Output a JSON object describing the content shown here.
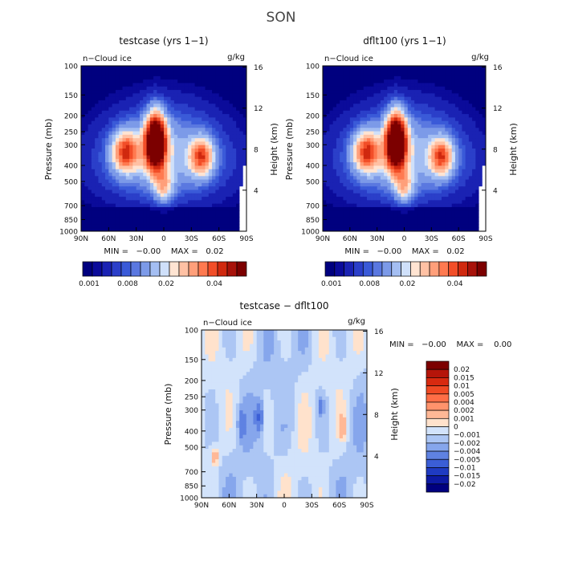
{
  "page_title": "SON",
  "chart_data": [
    {
      "type": "heatmap",
      "title": "testcase (yrs 1−1)",
      "variable_label": "n−Cloud ice",
      "units": "g/kg",
      "x_ticks": [
        "90N",
        "60N",
        "30N",
        "0",
        "30S",
        "60S",
        "90S"
      ],
      "pressure_ticks": [
        "100",
        "150",
        "200",
        "250",
        "300",
        "400",
        "500",
        "700",
        "850",
        "1000"
      ],
      "height_ticks": [
        "4",
        "8",
        "12",
        "16"
      ],
      "ylabel_left": "Pressure (mb)",
      "ylabel_right": "Height (km)",
      "stats": "MIN =   −0.00    MAX =   0.02",
      "colorbar_labels": [
        "0.001",
        "0.008",
        "0.02",
        "0.04"
      ],
      "colors": [
        "#00007f",
        "#0b0b9a",
        "#1a22b3",
        "#2b3fc9",
        "#3a5ad8",
        "#5a78e0",
        "#7c9ae8",
        "#a4bef2",
        "#cfe0fa",
        "#ffe4d2",
        "#ffc1a4",
        "#ff9f7a",
        "#ff7a50",
        "#f24e28",
        "#d0290f",
        "#a8120a",
        "#7c0000"
      ],
      "field": "cloud_ice"
    },
    {
      "type": "heatmap",
      "title": "dflt100 (yrs 1−1)",
      "variable_label": "n−Cloud ice",
      "units": "g/kg",
      "x_ticks": [
        "90N",
        "60N",
        "30N",
        "0",
        "30S",
        "60S",
        "90S"
      ],
      "pressure_ticks": [
        "100",
        "150",
        "200",
        "250",
        "300",
        "400",
        "500",
        "700",
        "850",
        "1000"
      ],
      "height_ticks": [
        "4",
        "8",
        "12",
        "16"
      ],
      "ylabel_left": "Pressure (mb)",
      "ylabel_right": "Height (km)",
      "stats": "MIN =   −0.00    MAX =   0.02",
      "colorbar_labels": [
        "0.001",
        "0.008",
        "0.02",
        "0.04"
      ],
      "colors": [
        "#00007f",
        "#0b0b9a",
        "#1a22b3",
        "#2b3fc9",
        "#3a5ad8",
        "#5a78e0",
        "#7c9ae8",
        "#a4bef2",
        "#cfe0fa",
        "#ffe4d2",
        "#ffc1a4",
        "#ff9f7a",
        "#ff7a50",
        "#f24e28",
        "#d0290f",
        "#a8120a",
        "#7c0000"
      ],
      "field": "cloud_ice"
    },
    {
      "type": "heatmap",
      "title": "testcase − dflt100",
      "variable_label": "n−Cloud ice",
      "units": "g/kg",
      "x_ticks": [
        "90N",
        "60N",
        "30N",
        "0",
        "30S",
        "60S",
        "90S"
      ],
      "pressure_ticks": [
        "100",
        "150",
        "200",
        "250",
        "300",
        "400",
        "500",
        "700",
        "850",
        "1000"
      ],
      "height_ticks": [
        "4",
        "8",
        "12",
        "16"
      ],
      "ylabel_left": "Pressure (mb)",
      "ylabel_right": "Height (km)",
      "stats": "MIN =   −0.00    MAX =    0.00",
      "colorbar_labels": [
        "0.02",
        "0.015",
        "0.01",
        "0.005",
        "0.004",
        "0.002",
        "0.001",
        "0",
        "−0.001",
        "−0.002",
        "−0.004",
        "−0.005",
        "−0.01",
        "−0.015",
        "−0.02"
      ],
      "colors": [
        "#7c0000",
        "#b5150a",
        "#d82a10",
        "#f04a24",
        "#ff6e46",
        "#ff936c",
        "#ffb896",
        "#ffe2cc",
        "#d2e3fb",
        "#acc6f4",
        "#86a6ec",
        "#5f82e2",
        "#3b5ed6",
        "#1f3bc2",
        "#0d1aa4",
        "#00007f"
      ],
      "field": "difference"
    }
  ]
}
